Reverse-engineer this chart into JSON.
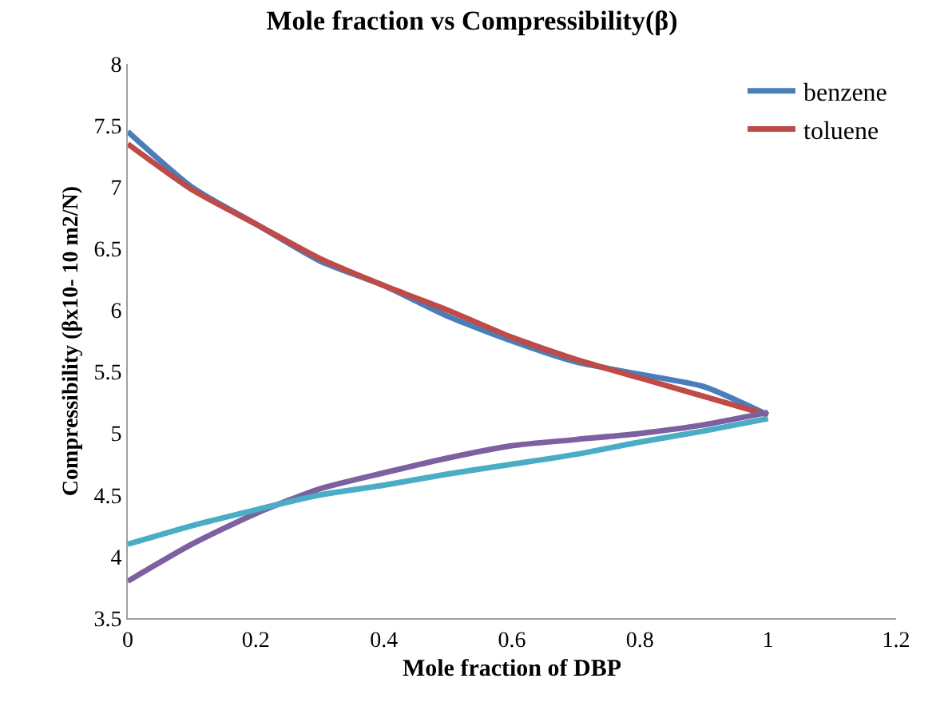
{
  "chart_data": {
    "type": "line",
    "title": "Mole fraction vs Compressibility(β)",
    "xlabel": "Mole fraction of DBP",
    "ylabel": "Compressibility (βx10- 10 m2/N)",
    "x": [
      0,
      0.1,
      0.2,
      0.3,
      0.4,
      0.5,
      0.6,
      0.7,
      0.8,
      0.9,
      1
    ],
    "series": [
      {
        "name": "benzene",
        "color": "#4a7ebb",
        "values": [
          7.45,
          7.0,
          6.7,
          6.4,
          6.2,
          5.95,
          5.75,
          5.58,
          5.48,
          5.38,
          5.15
        ]
      },
      {
        "name": "toluene",
        "color": "#be4b48",
        "values": [
          7.35,
          6.98,
          6.7,
          6.42,
          6.2,
          6.0,
          5.78,
          5.6,
          5.45,
          5.3,
          5.15
        ]
      },
      {
        "color": "#7d60a0",
        "values": [
          3.8,
          4.1,
          4.35,
          4.55,
          4.68,
          4.8,
          4.9,
          4.95,
          5.0,
          5.07,
          5.17
        ]
      },
      {
        "color": "#4bacc6",
        "values": [
          4.1,
          4.25,
          4.38,
          4.5,
          4.58,
          4.67,
          4.75,
          4.83,
          4.93,
          5.02,
          5.12
        ]
      }
    ],
    "xlim": [
      0,
      1.2
    ],
    "xticks": [
      0,
      0.2,
      0.4,
      0.6,
      0.8,
      1,
      1.2
    ],
    "ylim": [
      3.5,
      8
    ],
    "yticks": [
      3.5,
      4,
      4.5,
      5,
      5.5,
      6,
      6.5,
      7,
      7.5,
      8
    ],
    "legend": "top right",
    "marker": "none",
    "line_style": "solid"
  }
}
